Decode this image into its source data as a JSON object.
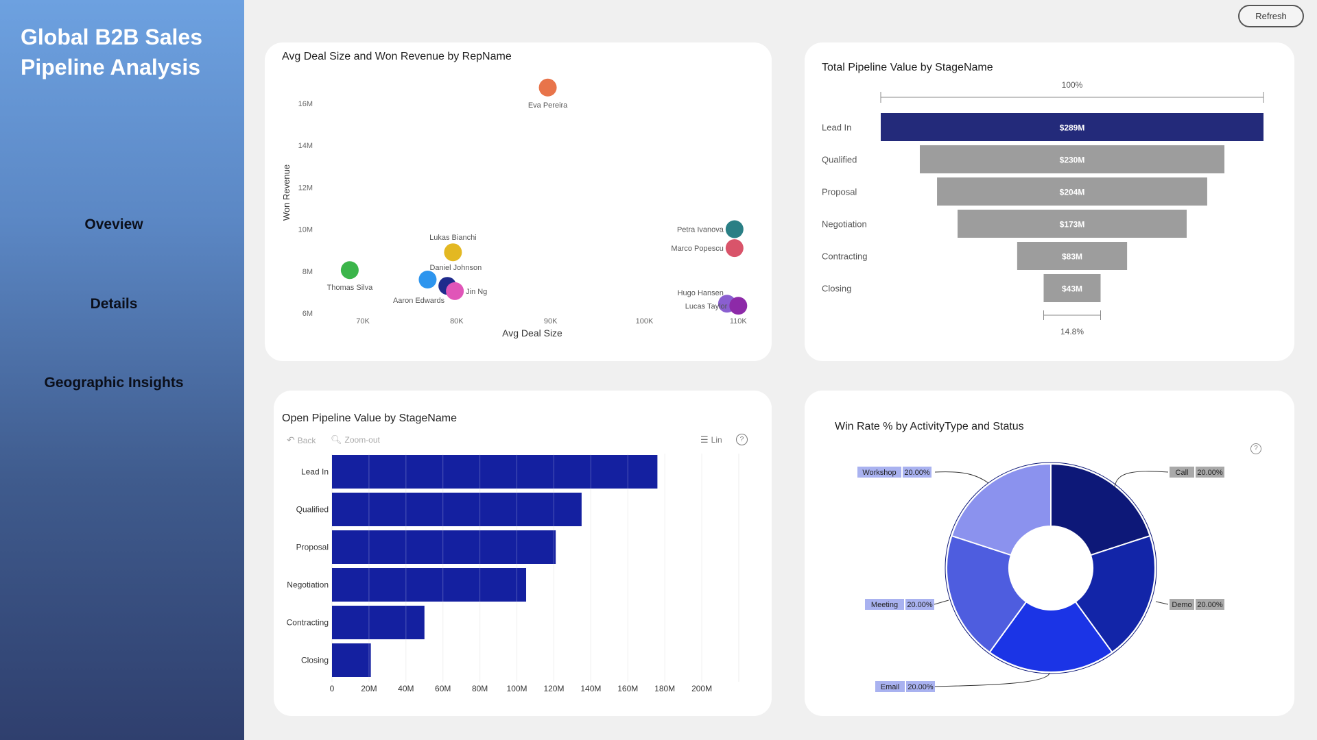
{
  "app": {
    "title": "Global B2B Sales\nPipeline Analysis",
    "refresh_label": "Refresh"
  },
  "nav": {
    "items": [
      {
        "label": "Oveview"
      },
      {
        "label": "Details"
      },
      {
        "label": "Geographic Insights"
      }
    ]
  },
  "toolbar": {
    "back_label": "Back",
    "zoom_out_label": "Zoom-out",
    "lin_label": "Lin"
  },
  "colors": {
    "sidebar_top": "#6da1e0",
    "sidebar_bottom": "#2f3f6e",
    "funnel_highlight": "#232a7a",
    "funnel_gray": "#9d9d9d",
    "bar_blue": "#1420a0"
  },
  "chart_data": [
    {
      "id": "scatter",
      "type": "scatter",
      "title": "Avg Deal Size and Won Revenue by RepName",
      "xlabel": "Avg Deal Size",
      "ylabel": "Won Revenue",
      "x_ticks": [
        "70K",
        "80K",
        "90K",
        "100K",
        "110K"
      ],
      "y_ticks": [
        "6M",
        "8M",
        "10M",
        "12M",
        "14M",
        "16M"
      ],
      "xlim": [
        67000,
        111000
      ],
      "ylim": [
        6000000,
        17200000
      ],
      "points": [
        {
          "name": "Eva Pereira",
          "x": 89700,
          "y": 16750000,
          "color": "#e8744a",
          "label_pos": "below"
        },
        {
          "name": "Petra Ivanova",
          "x": 109600,
          "y": 10000000,
          "color": "#2a7f85",
          "label_pos": "left"
        },
        {
          "name": "Marco Popescu",
          "x": 109600,
          "y": 9100000,
          "color": "#d9546a",
          "label_pos": "left"
        },
        {
          "name": "Lukas Bianchi",
          "x": 79600,
          "y": 8900000,
          "color": "#e3b822",
          "label_pos": "above"
        },
        {
          "name": "Thomas Silva",
          "x": 68600,
          "y": 8050000,
          "color": "#3bb54a",
          "label_pos": "below"
        },
        {
          "name": "Daniel Johnson",
          "x": 76900,
          "y": 7600000,
          "color": "#2d95ee",
          "label_pos": "right-above"
        },
        {
          "name": "Aaron Edwards",
          "x": 79000,
          "y": 7300000,
          "color": "#1f2b8c",
          "label_pos": "below-left"
        },
        {
          "name": "Jin Ng",
          "x": 79800,
          "y": 7050000,
          "color": "#e055b8",
          "label_pos": "right"
        },
        {
          "name": "Hugo Hansen",
          "x": 108800,
          "y": 6450000,
          "color": "#8a5fd0",
          "label_pos": "left-above"
        },
        {
          "name": "Lucas Taylor",
          "x": 110000,
          "y": 6350000,
          "color": "#8d2aa8",
          "label_pos": "left"
        }
      ]
    },
    {
      "id": "funnel",
      "type": "bar",
      "subtype": "funnel",
      "title": "Total Pipeline Value by StageName",
      "top_label": "100%",
      "bottom_label": "14.8%",
      "categories": [
        "Lead In",
        "Qualified",
        "Proposal",
        "Negotiation",
        "Contracting",
        "Closing"
      ],
      "values": [
        289,
        230,
        204,
        173,
        83,
        43
      ],
      "value_labels": [
        "$289M",
        "$230M",
        "$204M",
        "$173M",
        "$83M",
        "$43M"
      ],
      "unit": "M"
    },
    {
      "id": "hbar",
      "type": "bar",
      "orientation": "horizontal",
      "title": "Open Pipeline Value by StageName",
      "categories": [
        "Lead In",
        "Qualified",
        "Proposal",
        "Negotiation",
        "Contracting",
        "Closing"
      ],
      "values": [
        176,
        135,
        121,
        105,
        50,
        21
      ],
      "x_ticks": [
        "0",
        "20M",
        "40M",
        "60M",
        "80M",
        "100M",
        "120M",
        "140M",
        "160M",
        "180M",
        "200M"
      ],
      "xlim": [
        0,
        220
      ],
      "unit": "M",
      "grid": true
    },
    {
      "id": "donut",
      "type": "pie",
      "subtype": "donut",
      "title": "Win Rate % by ActivityType and Status",
      "slices": [
        {
          "name": "Call",
          "value": 20,
          "label": "20.00%",
          "color": "#0d1878"
        },
        {
          "name": "Demo",
          "value": 20,
          "label": "20.00%",
          "color": "#1225a8"
        },
        {
          "name": "Email",
          "value": 20,
          "label": "20.00%",
          "color": "#1b34e6"
        },
        {
          "name": "Meeting",
          "value": 20,
          "label": "20.00%",
          "color": "#4e5ddf"
        },
        {
          "name": "Workshop",
          "value": 20,
          "label": "20.00%",
          "color": "#8b92ee"
        }
      ]
    }
  ]
}
